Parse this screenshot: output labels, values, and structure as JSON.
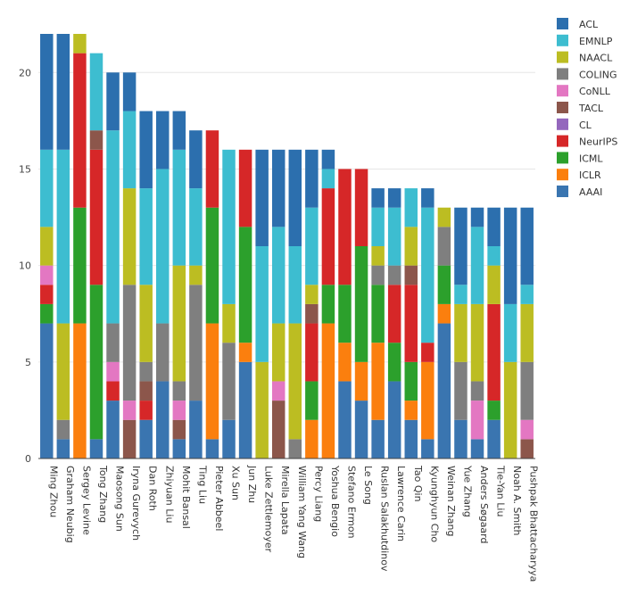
{
  "chart_data": {
    "type": "bar",
    "stacked": true,
    "title": "",
    "xlabel": "",
    "ylabel": "",
    "ylim": [
      0,
      22
    ],
    "yticks": [
      0,
      5,
      10,
      15,
      20
    ],
    "grid": true,
    "legend_position": "top-right",
    "categories": [
      "Ming Zhou",
      "Graham Neubig",
      "Sergey Levine",
      "Tong Zhang",
      "Maosong Sun",
      "Iryna Gurevych",
      "Dan Roth",
      "Zhiyuan Liu",
      "Mohit Bansal",
      "Ting Liu",
      "Pieter Abbeel",
      "Xu Sun",
      "Jun Zhu",
      "Luke Zettlemoyer",
      "Mirella Lapata",
      "William Yang Wang",
      "Percy Liang",
      "Yoshua Bengio",
      "Stefano Ermon",
      "Le Song",
      "Ruslan Salakhutdinov",
      "Lawrence Carin",
      "Tao Qin",
      "Kyunghyun Cho",
      "Weinan Zhang",
      "Yue Zhang",
      "Anders Søgaard",
      "Tie-Yan Liu",
      "Noah A. Smith",
      "Pushpak Bhattacharyya"
    ],
    "series": [
      {
        "name": "AAAI",
        "color": "#3a75b0",
        "values": [
          7,
          1,
          0,
          1,
          3,
          0,
          2,
          4,
          1,
          3,
          1,
          2,
          5,
          0,
          0,
          0,
          0,
          0,
          4,
          3,
          2,
          4,
          2,
          1,
          7,
          2,
          1,
          2,
          0,
          0
        ]
      },
      {
        "name": "ICLR",
        "color": "#fb7f0e",
        "values": [
          0,
          0,
          7,
          0,
          0,
          0,
          0,
          0,
          0,
          0,
          6,
          0,
          1,
          0,
          0,
          0,
          2,
          7,
          2,
          2,
          4,
          0,
          1,
          4,
          1,
          0,
          0,
          0,
          0,
          0
        ]
      },
      {
        "name": "ICML",
        "color": "#2ca02c",
        "values": [
          1,
          0,
          6,
          8,
          0,
          0,
          0,
          0,
          0,
          0,
          6,
          0,
          6,
          0,
          0,
          0,
          2,
          2,
          3,
          6,
          3,
          2,
          2,
          0,
          2,
          0,
          0,
          1,
          0,
          0
        ]
      },
      {
        "name": "NeurIPS",
        "color": "#d62728",
        "values": [
          1,
          0,
          8,
          7,
          1,
          0,
          1,
          0,
          0,
          0,
          4,
          0,
          4,
          0,
          0,
          0,
          3,
          5,
          6,
          4,
          0,
          3,
          4,
          1,
          0,
          0,
          0,
          5,
          0,
          0
        ]
      },
      {
        "name": "CL",
        "color": "#9467bd",
        "values": [
          0,
          0,
          0,
          0,
          0,
          0,
          0,
          0,
          0,
          0,
          0,
          0,
          0,
          0,
          0,
          0,
          0,
          0,
          0,
          0,
          0,
          0,
          0,
          0,
          0,
          0,
          0,
          0,
          0,
          0
        ]
      },
      {
        "name": "TACL",
        "color": "#8c564b",
        "values": [
          0,
          0,
          0,
          1,
          0,
          2,
          1,
          0,
          1,
          0,
          0,
          0,
          0,
          0,
          3,
          0,
          1,
          0,
          0,
          0,
          0,
          0,
          1,
          0,
          0,
          0,
          0,
          0,
          0,
          1
        ]
      },
      {
        "name": "CoNLL",
        "color": "#e377c2",
        "values": [
          1,
          0,
          0,
          0,
          1,
          1,
          0,
          0,
          1,
          0,
          0,
          0,
          0,
          0,
          1,
          0,
          0,
          0,
          0,
          0,
          0,
          0,
          0,
          0,
          0,
          0,
          2,
          0,
          0,
          1
        ]
      },
      {
        "name": "COLING",
        "color": "#7f7f7f",
        "values": [
          0,
          1,
          0,
          0,
          2,
          6,
          1,
          3,
          1,
          6,
          0,
          4,
          0,
          0,
          0,
          1,
          0,
          0,
          0,
          0,
          1,
          1,
          0,
          0,
          2,
          3,
          1,
          0,
          0,
          3
        ]
      },
      {
        "name": "NAACL",
        "color": "#bcbd22",
        "values": [
          2,
          5,
          1,
          0,
          0,
          5,
          4,
          0,
          6,
          1,
          0,
          2,
          0,
          5,
          3,
          6,
          1,
          0,
          0,
          0,
          1,
          0,
          2,
          0,
          1,
          3,
          4,
          2,
          5,
          3
        ]
      },
      {
        "name": "EMNLP",
        "color": "#3dbdd0",
        "values": [
          4,
          9,
          0,
          4,
          10,
          4,
          5,
          8,
          6,
          4,
          0,
          8,
          0,
          6,
          5,
          4,
          4,
          1,
          0,
          0,
          2,
          3,
          2,
          7,
          0,
          1,
          4,
          1,
          3,
          1
        ]
      },
      {
        "name": "ACL",
        "color": "#2c6fae",
        "values": [
          6,
          6,
          0,
          0,
          3,
          2,
          4,
          3,
          2,
          3,
          0,
          0,
          0,
          5,
          4,
          5,
          3,
          1,
          0,
          0,
          1,
          1,
          0,
          1,
          0,
          4,
          1,
          2,
          5,
          4
        ]
      }
    ],
    "legend_order": [
      "ACL",
      "EMNLP",
      "NAACL",
      "COLING",
      "CoNLL",
      "TACL",
      "CL",
      "NeurIPS",
      "ICML",
      "ICLR",
      "AAAI"
    ]
  }
}
